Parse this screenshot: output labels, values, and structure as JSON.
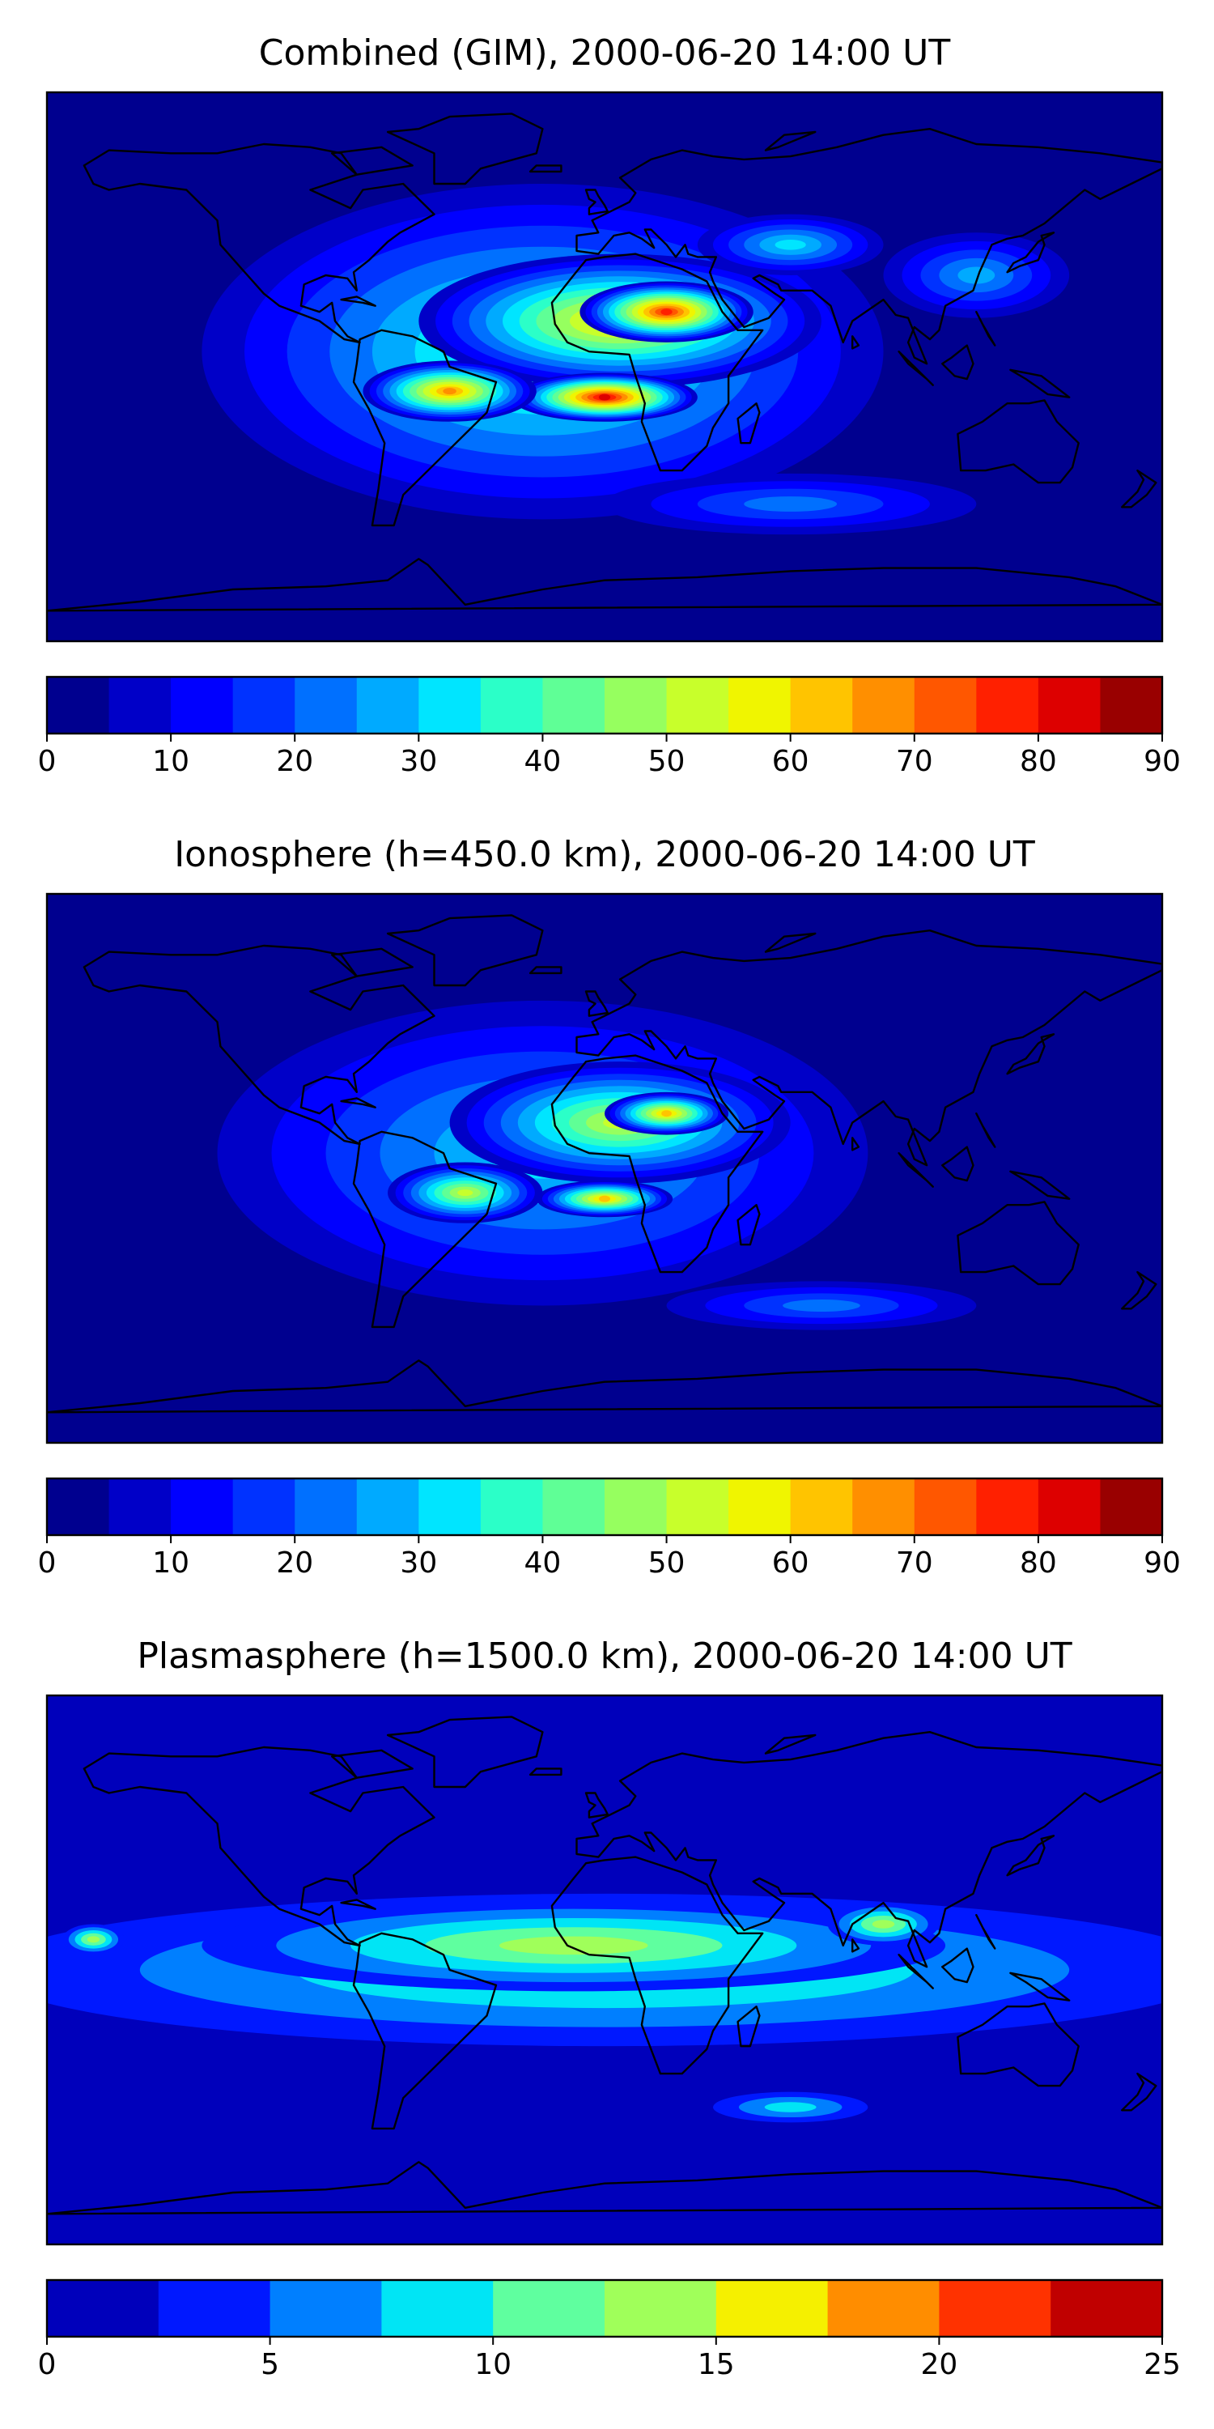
{
  "chart_data": [
    {
      "type": "heatmap",
      "title": "Combined (GIM), 2000-06-20 14:00 UT",
      "colorbar": {
        "ticks": [
          "0",
          "10",
          "20",
          "30",
          "40",
          "50",
          "60",
          "70",
          "80",
          "90"
        ],
        "levels": [
          0,
          5,
          10,
          15,
          20,
          25,
          30,
          35,
          40,
          45,
          50,
          55,
          60,
          65,
          70,
          75,
          80,
          85,
          90
        ],
        "colors": [
          "#00008f",
          "#0000c8",
          "#0000ff",
          "#0032ff",
          "#0070ff",
          "#00aaff",
          "#00e5ff",
          "#2bffc8",
          "#5fff96",
          "#96ff5f",
          "#c8ff2b",
          "#f0f500",
          "#ffc400",
          "#ff8f00",
          "#ff5700",
          "#ff2000",
          "#dd0000",
          "#990000"
        ]
      },
      "blobs": [
        {
          "lon": -20,
          "lat": 5,
          "rx": 110,
          "ry": 55,
          "value": 40
        },
        {
          "lon": 5,
          "lat": 15,
          "rx": 65,
          "ry": 22,
          "value": 62
        },
        {
          "lon": 20,
          "lat": 18,
          "rx": 28,
          "ry": 10,
          "value": 78
        },
        {
          "lon": 0,
          "lat": -10,
          "rx": 30,
          "ry": 8,
          "value": 82
        },
        {
          "lon": -50,
          "lat": -8,
          "rx": 28,
          "ry": 10,
          "value": 67
        },
        {
          "lon": 60,
          "lat": 40,
          "rx": 30,
          "ry": 10,
          "value": 33
        },
        {
          "lon": 120,
          "lat": 30,
          "rx": 30,
          "ry": 14,
          "value": 27
        },
        {
          "lon": 60,
          "lat": -45,
          "rx": 60,
          "ry": 10,
          "value": 22
        }
      ]
    },
    {
      "type": "heatmap",
      "title": "Ionosphere  (h=450.0 km), 2000-06-20 14:00 UT",
      "colorbar": {
        "ticks": [
          "0",
          "10",
          "20",
          "30",
          "40",
          "50",
          "60",
          "70",
          "80",
          "90"
        ],
        "levels": [
          0,
          5,
          10,
          15,
          20,
          25,
          30,
          35,
          40,
          45,
          50,
          55,
          60,
          65,
          70,
          75,
          80,
          85,
          90
        ],
        "colors": [
          "#00008f",
          "#0000c8",
          "#0000ff",
          "#0032ff",
          "#0070ff",
          "#00aaff",
          "#00e5ff",
          "#2bffc8",
          "#5fff96",
          "#96ff5f",
          "#c8ff2b",
          "#f0f500",
          "#ffc400",
          "#ff8f00",
          "#ff5700",
          "#ff2000",
          "#dd0000",
          "#990000"
        ]
      },
      "blobs": [
        {
          "lon": -20,
          "lat": 5,
          "rx": 105,
          "ry": 50,
          "value": 33
        },
        {
          "lon": 5,
          "lat": 15,
          "rx": 55,
          "ry": 20,
          "value": 50
        },
        {
          "lon": 20,
          "lat": 18,
          "rx": 20,
          "ry": 7,
          "value": 62
        },
        {
          "lon": 0,
          "lat": -10,
          "rx": 22,
          "ry": 6,
          "value": 62
        },
        {
          "lon": -45,
          "lat": -8,
          "rx": 25,
          "ry": 10,
          "value": 52
        },
        {
          "lon": 70,
          "lat": -45,
          "rx": 50,
          "ry": 8,
          "value": 22
        }
      ]
    },
    {
      "type": "heatmap",
      "title": "Plasmasphere (h=1500.0 km), 2000-06-20 14:00 UT",
      "colorbar": {
        "ticks": [
          "0",
          "5",
          "10",
          "15",
          "20",
          "25"
        ],
        "levels": [
          0,
          2.5,
          5,
          7.5,
          10,
          12.5,
          15,
          17.5,
          20,
          22.5,
          25
        ],
        "colors": [
          "#0000bb",
          "#0018ff",
          "#007fff",
          "#00e5f5",
          "#5fff9f",
          "#a0ff5a",
          "#f5f000",
          "#ff8d00",
          "#ff3200",
          "#c00000"
        ]
      },
      "blobs": [
        {
          "lon": 0,
          "lat": 0,
          "rx": 200,
          "ry": 25,
          "value": 11
        },
        {
          "lon": -10,
          "lat": 8,
          "rx": 120,
          "ry": 15,
          "value": 13
        },
        {
          "lon": 90,
          "lat": 15,
          "rx": 18,
          "ry": 7,
          "value": 14
        },
        {
          "lon": -165,
          "lat": 10,
          "rx": 10,
          "ry": 5,
          "value": 13
        },
        {
          "lon": 60,
          "lat": -45,
          "rx": 25,
          "ry": 5,
          "value": 8
        },
        {
          "lon": -40,
          "lat": 62,
          "rx": 50,
          "ry": 14,
          "value": 1.5
        }
      ]
    }
  ]
}
